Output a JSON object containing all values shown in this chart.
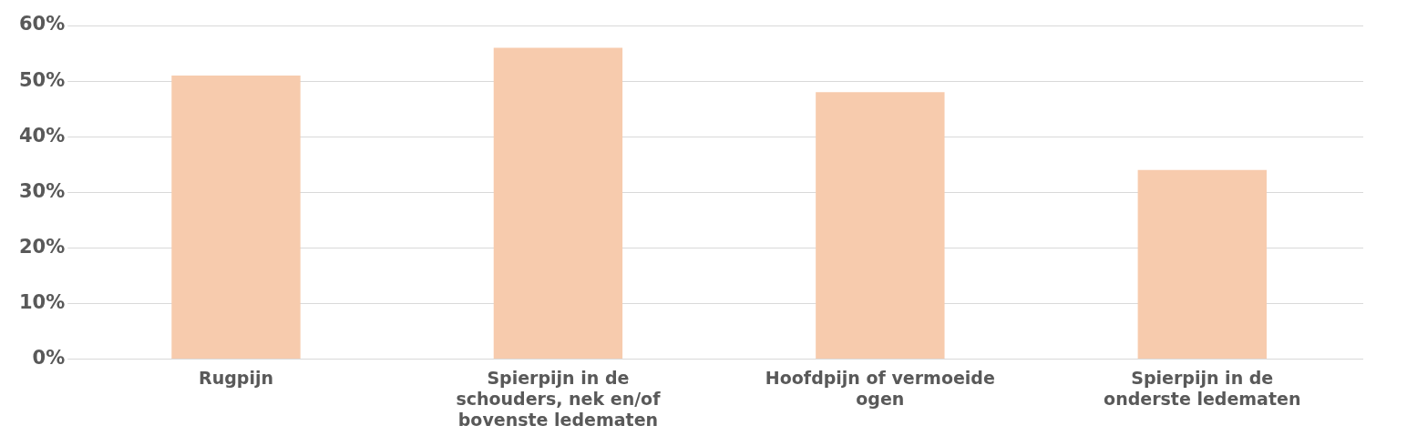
{
  "chart_data": {
    "type": "bar",
    "categories": [
      "Rugpijn",
      "Spierpijn in de schouders, nek en/of bovenste ledematen",
      "Hoofdpijn of vermoeide ogen",
      "Spierpijn in de onderste ledematen"
    ],
    "values": [
      51,
      56,
      48,
      34
    ],
    "color": "#f7cbad",
    "ylim": [
      0,
      60
    ],
    "yticks": [
      {
        "value": 0,
        "label": "0%"
      },
      {
        "value": 10,
        "label": "10%"
      },
      {
        "value": 20,
        "label": "20%"
      },
      {
        "value": 30,
        "label": "30%"
      },
      {
        "value": 40,
        "label": "40%"
      },
      {
        "value": 50,
        "label": "50%"
      },
      {
        "value": 60,
        "label": "60%"
      }
    ],
    "grid": "y"
  }
}
